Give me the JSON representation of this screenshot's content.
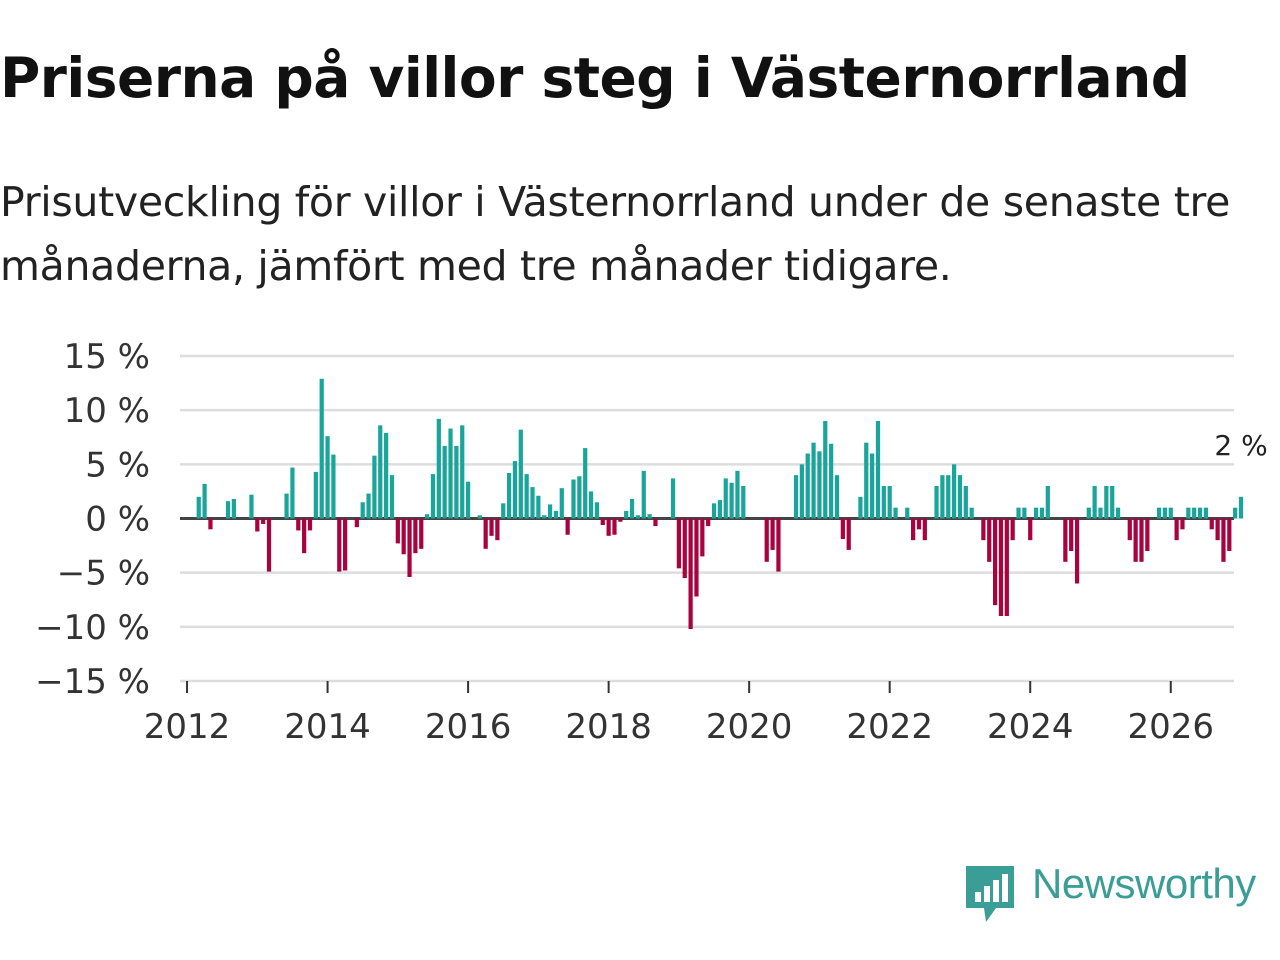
{
  "title": "Priserna på villor steg i Västernorrland",
  "subtitle": "Prisutveckling för villor i Västernorrland under de senaste tre månaderna, jämfört med tre månader tidigare.",
  "brand": {
    "name": "Newsworthy",
    "icon": "newsworthy-logo-icon"
  },
  "colors": {
    "positive": "#1aa59b",
    "negative": "#a8023f",
    "grid": "#dddddd",
    "zero": "#444444",
    "brand": "#3a9e96"
  },
  "chart_data": {
    "type": "bar",
    "title": "Priserna på villor steg i Västernorrland",
    "xlabel": "",
    "ylabel": "",
    "ylim": [
      -15,
      15
    ],
    "xlim": [
      2011.9,
      2026.9
    ],
    "yticks": [
      15,
      10,
      5,
      0,
      -5,
      -10,
      -15
    ],
    "ytick_labels": [
      "15 %",
      "10 %",
      "5 %",
      "0 %",
      "−5 %",
      "−10 %",
      "−15 %"
    ],
    "xticks": [
      2012,
      2014,
      2016,
      2018,
      2020,
      2022,
      2024,
      2026
    ],
    "xtick_labels": [
      "2012",
      "2014",
      "2016",
      "2018",
      "2020",
      "2022",
      "2024",
      "2026"
    ],
    "start": "2012-01",
    "frequency": "monthly",
    "unit": "%",
    "end_label": "2 %",
    "values": [
      0,
      0,
      2,
      3.2,
      -1,
      0,
      0,
      1.6,
      1.8,
      0,
      0,
      2.2,
      -1.2,
      -0.5,
      -4.9,
      0,
      0,
      2.3,
      4.7,
      -1.1,
      -3.2,
      -1.1,
      4.3,
      12.9,
      7.6,
      5.9,
      -4.9,
      -4.8,
      0,
      -0.8,
      1.5,
      2.3,
      5.8,
      8.6,
      7.9,
      4,
      -2.3,
      -3.3,
      -5.4,
      -3.2,
      -2.8,
      0.4,
      4.1,
      9.2,
      6.7,
      8.3,
      6.7,
      8.6,
      3.4,
      0,
      0.3,
      -2.8,
      -1.6,
      -2,
      1.4,
      4.2,
      5.3,
      8.2,
      4.1,
      2.9,
      2.1,
      0.3,
      1.3,
      0.7,
      2.8,
      -1.5,
      3.6,
      3.9,
      6.5,
      2.5,
      1.5,
      -0.6,
      -1.6,
      -1.5,
      -0.3,
      0.7,
      1.8,
      0.3,
      4.4,
      0.4,
      -0.7,
      0,
      0,
      3.7,
      -4.6,
      -5.5,
      -10.2,
      -7.2,
      -3.5,
      -0.7,
      1.4,
      1.7,
      3.7,
      3.3,
      4.4,
      3,
      0,
      0,
      0,
      -4,
      -2.9,
      -4.9,
      0,
      0,
      4,
      5,
      6,
      7,
      6.2,
      9,
      6.9,
      4,
      -1.9,
      -2.9,
      0,
      2,
      7,
      6,
      9,
      3,
      3,
      1,
      0,
      1,
      -2,
      -1,
      -2,
      0,
      3,
      4,
      4,
      5,
      4,
      3,
      1,
      0,
      -2,
      -4,
      -8,
      -9,
      -9,
      -2,
      1,
      1,
      -2,
      1,
      1,
      3,
      0,
      0,
      -4,
      -3,
      -6,
      0,
      1,
      3,
      1,
      3,
      3,
      1,
      0,
      -2,
      -4,
      -4,
      -3,
      0,
      1,
      1,
      1,
      -2,
      -1,
      1,
      1,
      1,
      1,
      -1,
      -2,
      -4,
      -3,
      1,
      2
    ]
  }
}
